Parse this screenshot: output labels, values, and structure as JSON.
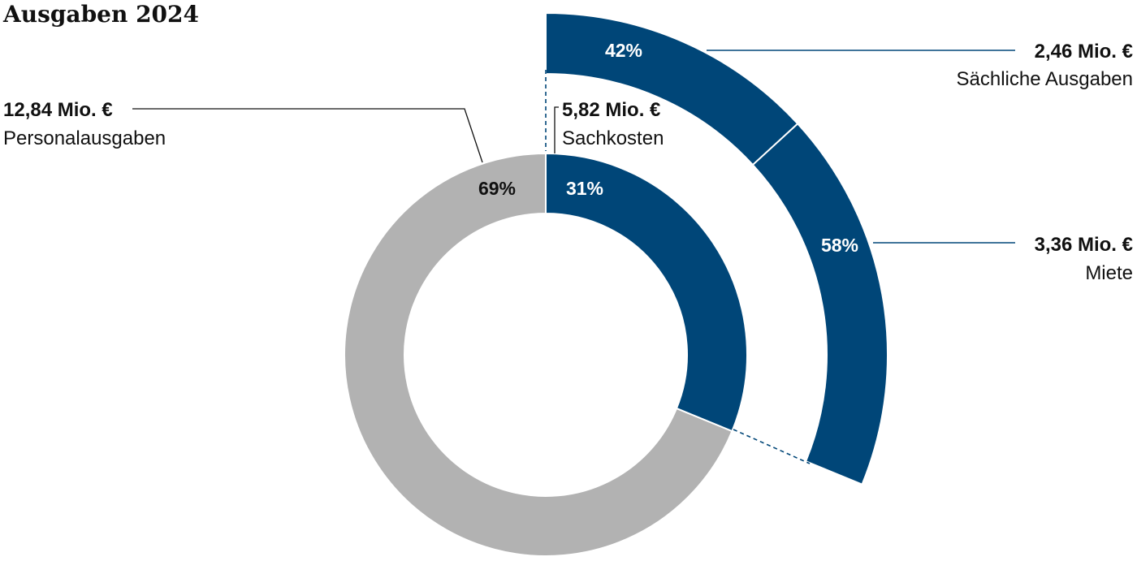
{
  "chart_data": {
    "type": "pie",
    "title": "Ausgaben 2024",
    "inner": [
      {
        "name": "Personalausgaben",
        "value_label": "12,84 Mio. €",
        "value": 12.84,
        "pct_label": "69%",
        "color": "#b2b2b2",
        "pct_color": "#111111"
      },
      {
        "name": "Sachkosten",
        "value_label": "5,82 Mio. €",
        "value": 5.82,
        "pct_label": "31%",
        "color": "#004678",
        "pct_color": "#ffffff"
      }
    ],
    "outer": [
      {
        "name": "Sächliche Ausgaben",
        "value_label": "2,46 Mio. €",
        "value": 2.46,
        "pct_label": "42%",
        "color": "#004678",
        "pct_color": "#ffffff"
      },
      {
        "name": "Miete",
        "value_label": "3,36 Mio. €",
        "value": 3.36,
        "pct_label": "58%",
        "color": "#004678",
        "pct_color": "#ffffff"
      }
    ],
    "outer_breaks_down": "Sachkosten"
  }
}
